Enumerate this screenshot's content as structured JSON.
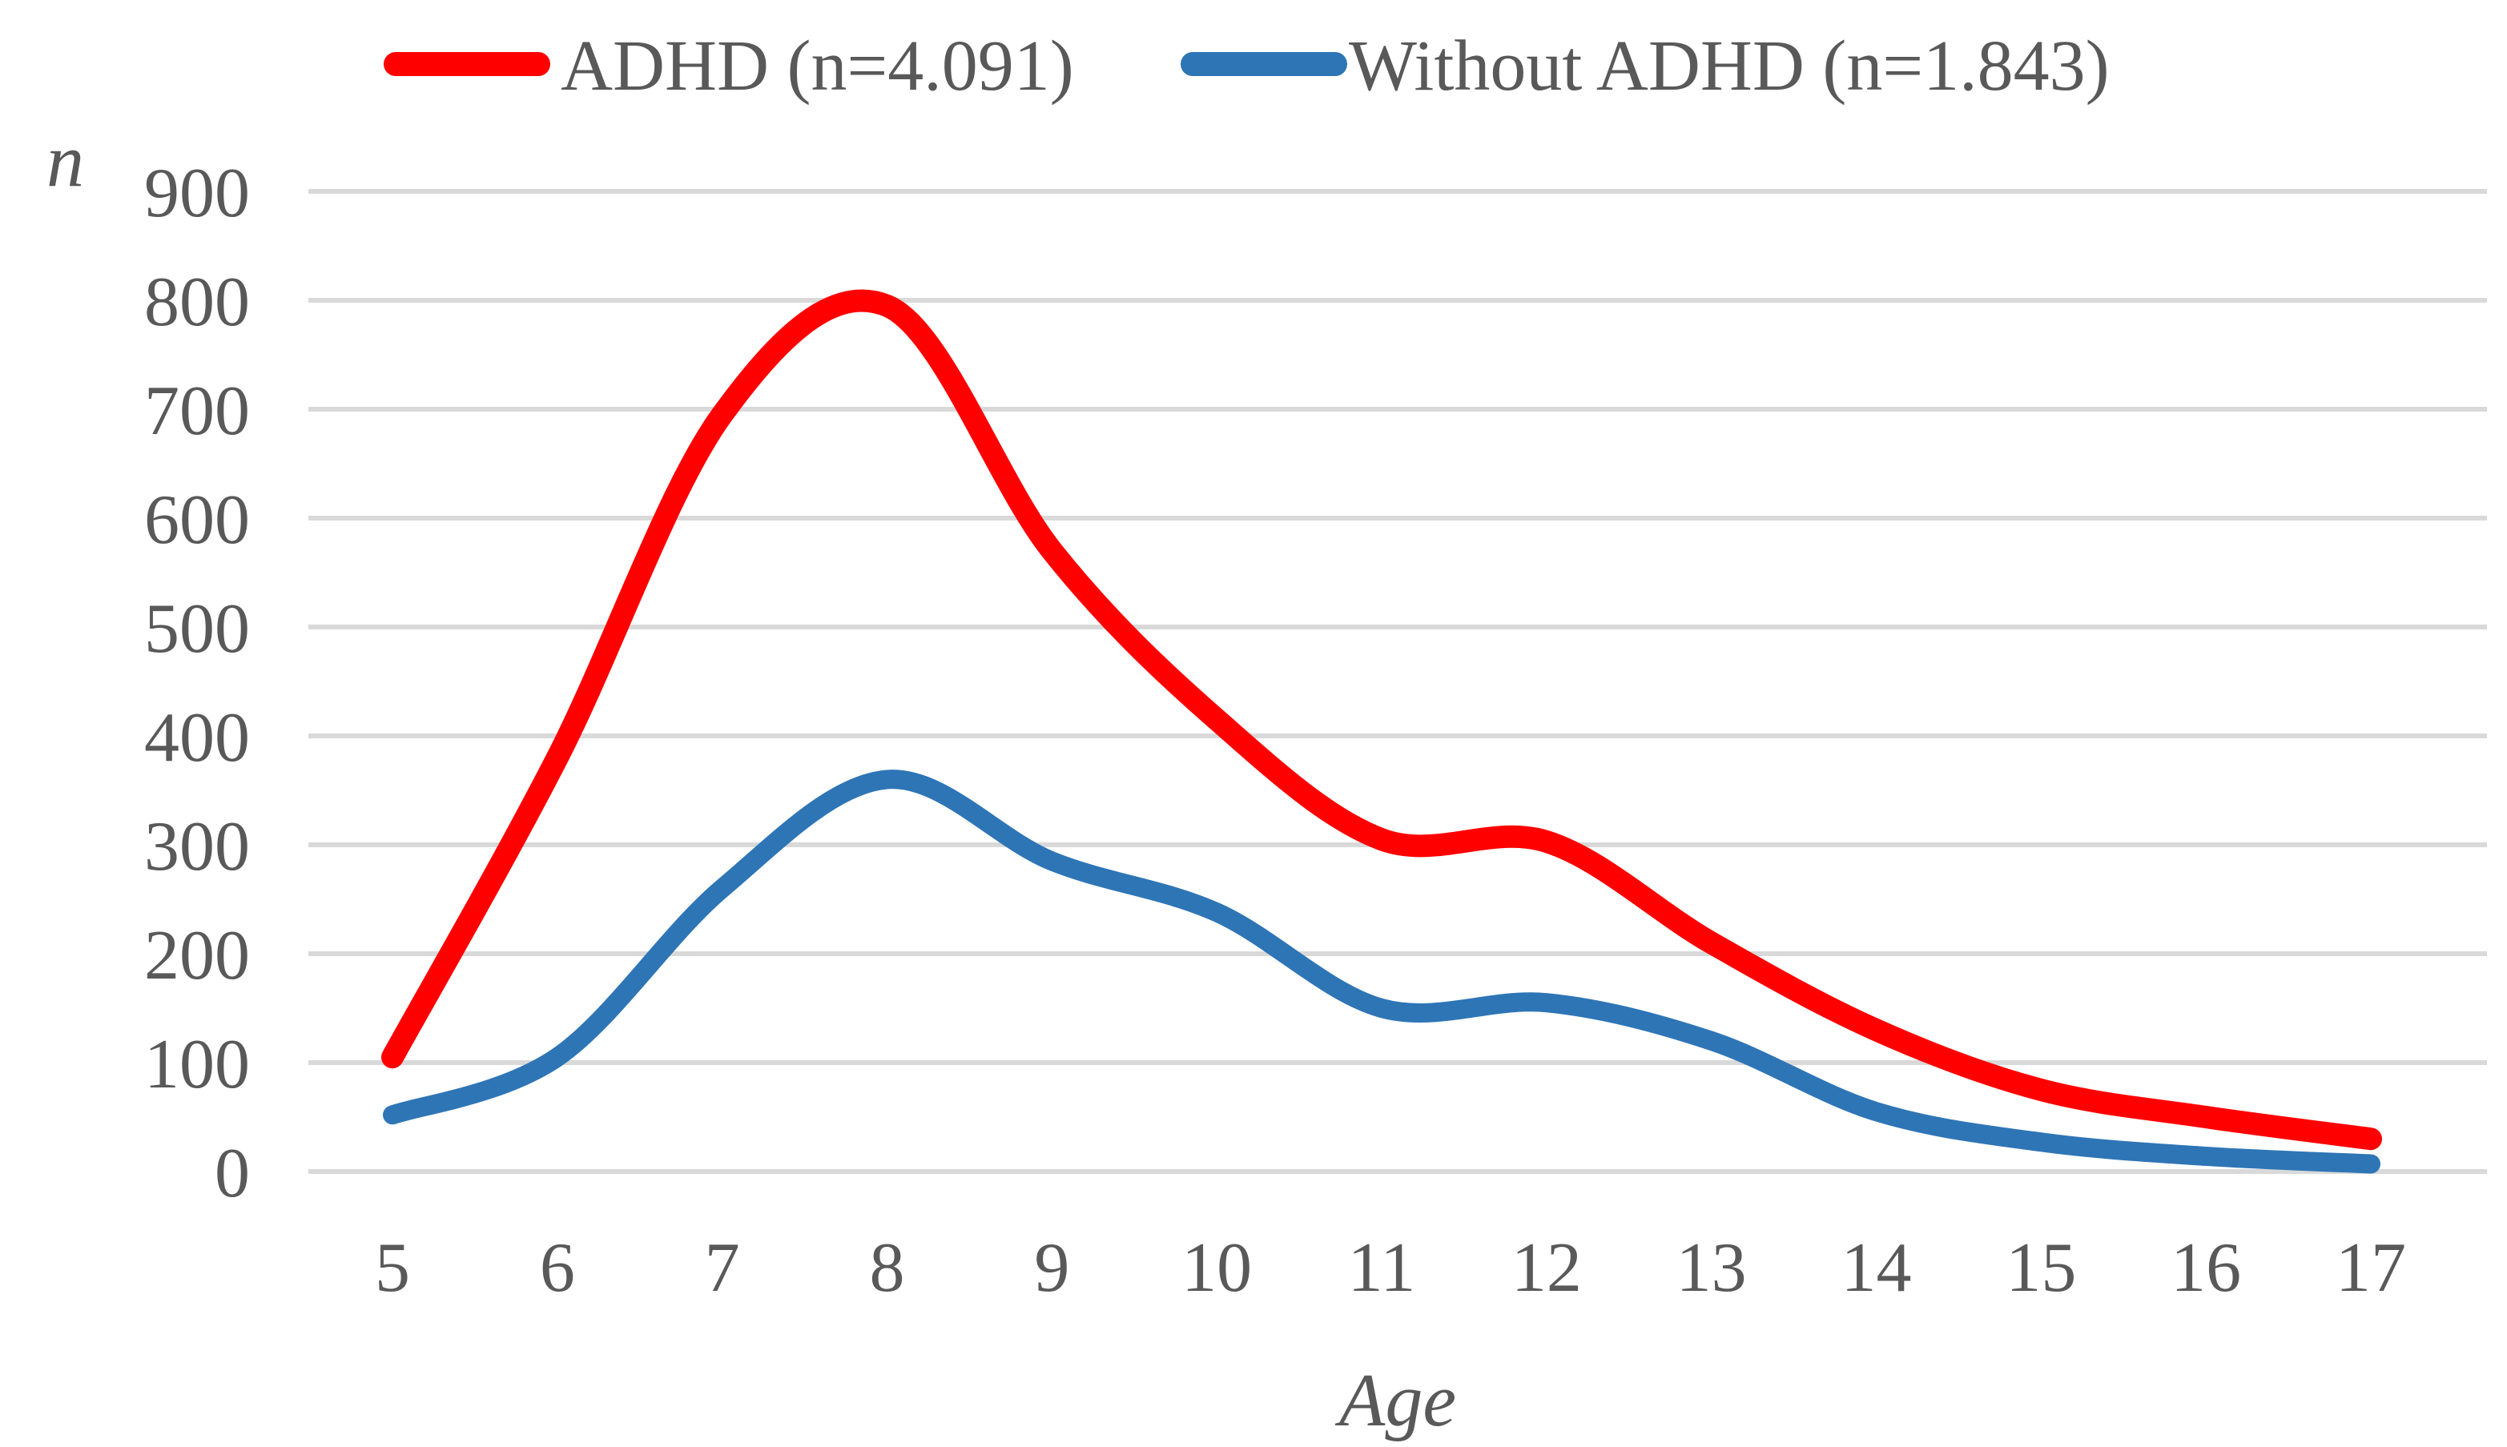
{
  "figure": {
    "background": "#FFFFFF",
    "text_color": "#595959",
    "grid_color": "#D9D9D9"
  },
  "chart_data": {
    "type": "line",
    "title": "",
    "x": [
      5,
      6,
      7,
      8,
      9,
      10,
      11,
      12,
      13,
      14,
      15,
      16,
      17
    ],
    "series": [
      {
        "name": "ADHD (n=4.091)",
        "color": "#FF0000",
        "values": [
          105,
          380,
          695,
          795,
          570,
          415,
          305,
          303,
          210,
          130,
          75,
          50,
          30
        ]
      },
      {
        "name": "Without ADHD (n=1.843)",
        "color": "#2E75B6",
        "values": [
          52,
          105,
          260,
          360,
          285,
          238,
          150,
          155,
          120,
          55,
          27,
          14,
          7
        ]
      }
    ],
    "xlabel": "Age",
    "ylabel": "n",
    "x_ticks": [
      5,
      6,
      7,
      8,
      9,
      10,
      11,
      12,
      13,
      14,
      15,
      16,
      17
    ],
    "y_ticks": [
      0,
      100,
      200,
      300,
      400,
      500,
      600,
      700,
      800,
      900
    ],
    "ylim": [
      0,
      900
    ],
    "xlim": [
      5,
      17
    ],
    "grid": true,
    "legend_position": "top",
    "smooth": true
  }
}
